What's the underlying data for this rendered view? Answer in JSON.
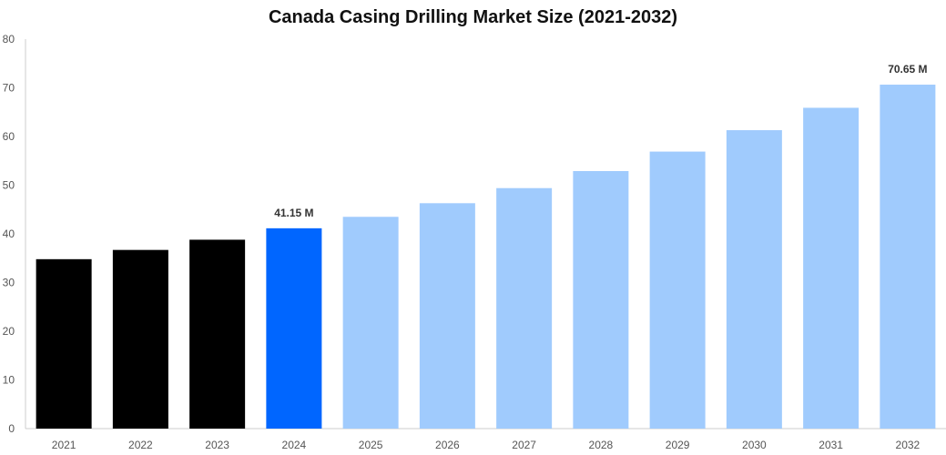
{
  "chart_data": {
    "type": "bar",
    "title": "Canada Casing Drilling Market Size (2021-2032)",
    "xlabel": "",
    "ylabel": "",
    "categories": [
      "2021",
      "2022",
      "2023",
      "2024",
      "2025",
      "2026",
      "2027",
      "2028",
      "2029",
      "2030",
      "2031",
      "2032"
    ],
    "values": [
      34.8,
      36.7,
      38.8,
      41.15,
      43.5,
      46.3,
      49.4,
      52.9,
      56.9,
      61.3,
      65.9,
      70.65
    ],
    "ylim": [
      0,
      80
    ],
    "yticks": [
      0,
      10,
      20,
      30,
      40,
      50,
      60,
      70,
      80
    ],
    "grid": false,
    "legend": "none",
    "data_labels": [
      {
        "category": "2024",
        "text": "41.15 M"
      },
      {
        "category": "2032",
        "text": "70.65 M"
      }
    ],
    "colors": {
      "historical": "#000000",
      "current": "#0066ff",
      "forecast": "#a0cbfd",
      "axis": "#cccccc"
    },
    "segments": {
      "historical": [
        "2021",
        "2022",
        "2023"
      ],
      "current": [
        "2024"
      ],
      "forecast": [
        "2025",
        "2026",
        "2027",
        "2028",
        "2029",
        "2030",
        "2031",
        "2032"
      ]
    }
  }
}
